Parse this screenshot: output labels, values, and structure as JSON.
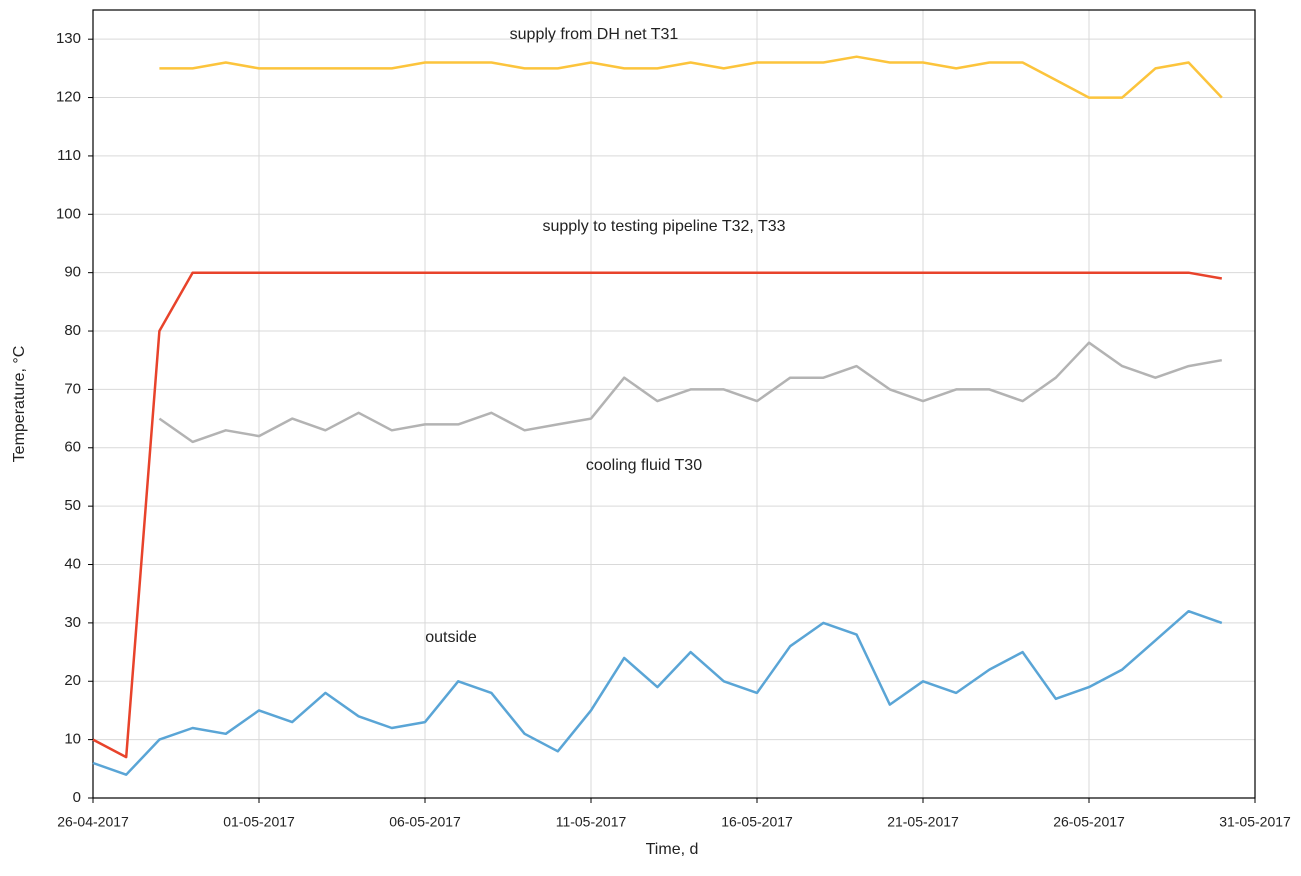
{
  "chart_data": {
    "type": "line",
    "x_label": "Time, d",
    "y_label": "Temperature, °C",
    "x": [
      "26-04-2017",
      "27-04-2017",
      "28-04-2017",
      "29-04-2017",
      "30-04-2017",
      "01-05-2017",
      "02-05-2017",
      "03-05-2017",
      "04-05-2017",
      "05-05-2017",
      "06-05-2017",
      "07-05-2017",
      "08-05-2017",
      "09-05-2017",
      "10-05-2017",
      "11-05-2017",
      "12-05-2017",
      "13-05-2017",
      "14-05-2017",
      "15-05-2017",
      "16-05-2017",
      "17-05-2017",
      "18-05-2017",
      "19-05-2017",
      "20-05-2017",
      "21-05-2017",
      "22-05-2017",
      "23-05-2017",
      "24-05-2017",
      "25-05-2017",
      "26-05-2017",
      "27-05-2017",
      "28-05-2017",
      "29-05-2017",
      "30-05-2017"
    ],
    "series": [
      {
        "name": "cooling fluid T30",
        "color": "#b3b3b3",
        "values": [
          null,
          null,
          65,
          61,
          63,
          62,
          65,
          63,
          66,
          63,
          64,
          64,
          66,
          63,
          64,
          65,
          72,
          68,
          70,
          70,
          68,
          72,
          72,
          74,
          70,
          68,
          70,
          70,
          68,
          72,
          78,
          74,
          72,
          74,
          75
        ]
      },
      {
        "name": "supply to testing pipeline T32, T33",
        "color": "#e8432b",
        "values": [
          10,
          7,
          80,
          90,
          90,
          90,
          90,
          90,
          90,
          90,
          90,
          90,
          90,
          90,
          90,
          90,
          90,
          90,
          90,
          90,
          90,
          90,
          90,
          90,
          90,
          90,
          90,
          90,
          90,
          90,
          90,
          90,
          90,
          90,
          89
        ]
      },
      {
        "name": "supply from DH net T31",
        "color": "#fcc43c",
        "values": [
          null,
          null,
          125,
          125,
          126,
          125,
          125,
          125,
          125,
          125,
          126,
          126,
          126,
          125,
          125,
          126,
          125,
          125,
          126,
          125,
          126,
          126,
          126,
          127,
          126,
          126,
          125,
          126,
          126,
          123,
          120,
          120,
          125,
          126,
          120
        ]
      },
      {
        "name": "outside",
        "color": "#5aa5d6",
        "values": [
          6,
          4,
          10,
          12,
          11,
          15,
          13,
          18,
          14,
          12,
          13,
          20,
          18,
          11,
          8,
          15,
          24,
          19,
          25,
          20,
          18,
          26,
          30,
          28,
          16,
          20,
          18,
          22,
          25,
          17,
          19,
          22,
          27,
          32,
          30
        ]
      }
    ],
    "xlim": [
      "26-04-2017",
      "31-05-2017"
    ],
    "xticks": [
      "26-04-2017",
      "01-05-2017",
      "06-05-2017",
      "11-05-2017",
      "16-05-2017",
      "21-05-2017",
      "26-05-2017",
      "31-05-2017"
    ],
    "ylim": [
      0,
      135
    ],
    "yticks": [
      0,
      10,
      20,
      30,
      40,
      50,
      60,
      70,
      80,
      90,
      100,
      110,
      120,
      130
    ],
    "grid": true
  }
}
